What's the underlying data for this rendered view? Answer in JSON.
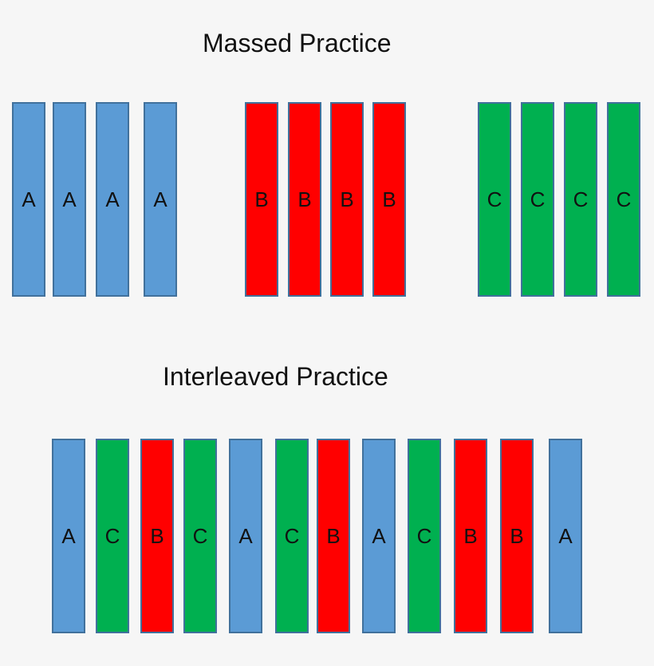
{
  "colors": {
    "A": "#5b9bd5",
    "B": "#ff0000",
    "C": "#00b050",
    "border": "#41719c",
    "background": "#f6f6f6"
  },
  "massed": {
    "title": "Massed Practice",
    "items": [
      "A",
      "A",
      "A",
      "A",
      "B",
      "B",
      "B",
      "B",
      "C",
      "C",
      "C",
      "C"
    ]
  },
  "interleaved": {
    "title": "Interleaved Practice",
    "items": [
      "A",
      "C",
      "B",
      "C",
      "A",
      "C",
      "B",
      "A",
      "C",
      "B",
      "B",
      "A"
    ]
  }
}
